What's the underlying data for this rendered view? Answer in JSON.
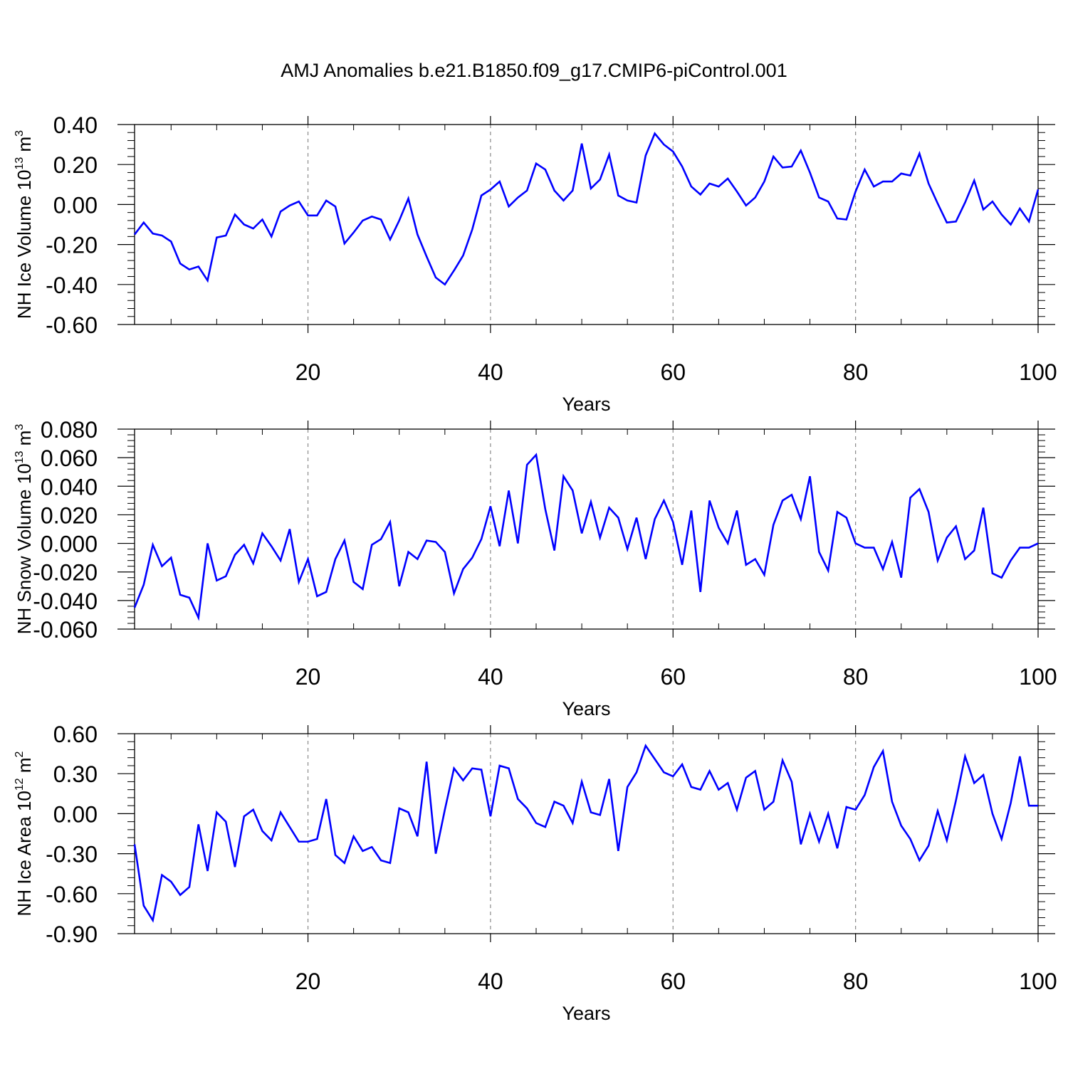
{
  "title": "AMJ Anomalies b.e21.B1850.f09_g17.CMIP6-piControl.001",
  "line_color": "#0000ff",
  "chart_data": [
    {
      "type": "line",
      "title": "AMJ Anomalies b.e21.B1850.f09_g17.CMIP6-piControl.001",
      "xlabel": "Years",
      "ylabel": {
        "text": "NH Ice Volume 10",
        "sup": "13",
        "unit": " m",
        "unit_sup": "3"
      },
      "xlim": [
        1,
        100
      ],
      "ylim": [
        -0.6,
        0.4
      ],
      "x_ticks": [
        20,
        40,
        60,
        80,
        100
      ],
      "x_tick_labels": [
        "20",
        "40",
        "60",
        "80",
        "100"
      ],
      "y_ticks": [
        0.4,
        0.2,
        0.0,
        -0.2,
        -0.4,
        -0.6
      ],
      "y_tick_labels": [
        "0.40",
        "0.20",
        "0.00",
        "-0.20",
        "-0.40",
        "-0.60"
      ],
      "series": [
        {
          "name": "NH Ice Volume",
          "x_start": 1,
          "values": [
            -0.15,
            -0.09,
            -0.145,
            -0.155,
            -0.185,
            -0.295,
            -0.325,
            -0.31,
            -0.38,
            -0.165,
            -0.155,
            -0.05,
            -0.1,
            -0.12,
            -0.075,
            -0.16,
            -0.035,
            -0.005,
            0.015,
            -0.055,
            -0.055,
            0.02,
            -0.01,
            -0.195,
            -0.14,
            -0.08,
            -0.06,
            -0.075,
            -0.175,
            -0.08,
            0.03,
            -0.15,
            -0.26,
            -0.365,
            -0.4,
            -0.33,
            -0.255,
            -0.125,
            0.045,
            0.075,
            0.115,
            -0.01,
            0.035,
            0.07,
            0.205,
            0.175,
            0.07,
            0.02,
            0.07,
            0.305,
            0.08,
            0.125,
            0.25,
            0.045,
            0.02,
            0.01,
            0.245,
            0.355,
            0.3,
            0.265,
            0.19,
            0.09,
            0.05,
            0.105,
            0.09,
            0.13,
            0.065,
            -0.005,
            0.035,
            0.115,
            0.24,
            0.185,
            0.19,
            0.27,
            0.16,
            0.035,
            0.015,
            -0.07,
            -0.075,
            0.065,
            0.175,
            0.09,
            0.115,
            0.115,
            0.155,
            0.145,
            0.255,
            0.105,
            0.005,
            -0.09,
            -0.085,
            0.01,
            0.12,
            -0.025,
            0.015,
            -0.05,
            -0.1,
            -0.02,
            -0.085,
            0.075
          ]
        }
      ]
    },
    {
      "type": "line",
      "xlabel": "Years",
      "ylabel": {
        "text": "NH Snow Volume 10",
        "sup": "13",
        "unit": " m",
        "unit_sup": "3"
      },
      "xlim": [
        1,
        100
      ],
      "ylim": [
        -0.06,
        0.08
      ],
      "x_ticks": [
        20,
        40,
        60,
        80,
        100
      ],
      "x_tick_labels": [
        "20",
        "40",
        "60",
        "80",
        "100"
      ],
      "y_ticks": [
        0.08,
        0.06,
        0.04,
        0.02,
        0.0,
        -0.02,
        -0.04,
        -0.06
      ],
      "y_tick_labels": [
        "0.080",
        "0.060",
        "0.040",
        "0.020",
        "0.000",
        "-0.020",
        "-0.040",
        "-0.060"
      ],
      "series": [
        {
          "name": "NH Snow Volume",
          "x_start": 1,
          "values": [
            -0.045,
            -0.029,
            -0.001,
            -0.016,
            -0.01,
            -0.036,
            -0.038,
            -0.052,
            0.0,
            -0.026,
            -0.023,
            -0.008,
            -0.001,
            -0.014,
            0.007,
            -0.002,
            -0.012,
            0.01,
            -0.027,
            -0.011,
            -0.037,
            -0.034,
            -0.011,
            0.002,
            -0.027,
            -0.032,
            -0.001,
            0.003,
            0.015,
            -0.03,
            -0.006,
            -0.011,
            0.002,
            0.001,
            -0.006,
            -0.035,
            -0.018,
            -0.01,
            0.003,
            0.026,
            -0.002,
            0.037,
            0.0,
            0.055,
            0.062,
            0.024,
            -0.005,
            0.047,
            0.037,
            0.007,
            0.029,
            0.004,
            0.025,
            0.018,
            -0.004,
            0.018,
            -0.011,
            0.017,
            0.03,
            0.015,
            -0.015,
            0.023,
            -0.034,
            0.03,
            0.011,
            0.0,
            0.023,
            -0.015,
            -0.011,
            -0.022,
            0.013,
            0.03,
            0.034,
            0.017,
            0.047,
            -0.006,
            -0.019,
            0.022,
            0.018,
            0.0,
            -0.003,
            -0.003,
            -0.018,
            0.001,
            -0.024,
            0.032,
            0.038,
            0.022,
            -0.012,
            0.004,
            0.012,
            -0.011,
            -0.005,
            0.025,
            -0.021,
            -0.024,
            -0.012,
            -0.003,
            -0.003,
            0.0
          ]
        }
      ]
    },
    {
      "type": "line",
      "xlabel": "Years",
      "ylabel": {
        "text": "NH Ice Area 10",
        "sup": "12",
        "unit": " m",
        "unit_sup": "2"
      },
      "xlim": [
        1,
        100
      ],
      "ylim": [
        -0.9,
        0.6
      ],
      "x_ticks": [
        20,
        40,
        60,
        80,
        100
      ],
      "x_tick_labels": [
        "20",
        "40",
        "60",
        "80",
        "100"
      ],
      "y_ticks": [
        0.6,
        0.3,
        0.0,
        -0.3,
        -0.6,
        -0.9
      ],
      "y_tick_labels": [
        "0.60",
        "0.30",
        "0.00",
        "-0.30",
        "-0.60",
        "-0.90"
      ],
      "series": [
        {
          "name": "NH Ice Area",
          "x_start": 1,
          "values": [
            -0.23,
            -0.69,
            -0.8,
            -0.46,
            -0.51,
            -0.61,
            -0.55,
            -0.08,
            -0.43,
            0.01,
            -0.06,
            -0.4,
            -0.02,
            0.03,
            -0.13,
            -0.2,
            0.01,
            -0.1,
            -0.21,
            -0.21,
            -0.19,
            0.11,
            -0.31,
            -0.37,
            -0.17,
            -0.28,
            -0.25,
            -0.35,
            -0.37,
            0.04,
            0.01,
            -0.17,
            0.39,
            -0.3,
            0.03,
            0.34,
            0.25,
            0.34,
            0.33,
            -0.02,
            0.36,
            0.34,
            0.11,
            0.04,
            -0.07,
            -0.1,
            0.09,
            0.06,
            -0.07,
            0.24,
            0.01,
            -0.01,
            0.26,
            -0.28,
            0.2,
            0.31,
            0.51,
            0.41,
            0.31,
            0.28,
            0.37,
            0.2,
            0.18,
            0.32,
            0.18,
            0.23,
            0.03,
            0.27,
            0.32,
            0.03,
            0.09,
            0.4,
            0.24,
            -0.23,
            0.0,
            -0.21,
            0.0,
            -0.26,
            0.05,
            0.03,
            0.14,
            0.35,
            0.47,
            0.09,
            -0.09,
            -0.19,
            -0.35,
            -0.24,
            0.02,
            -0.2,
            0.1,
            0.43,
            0.23,
            0.29,
            0.0,
            -0.19,
            0.08,
            0.43,
            0.06,
            0.06
          ]
        }
      ]
    }
  ]
}
